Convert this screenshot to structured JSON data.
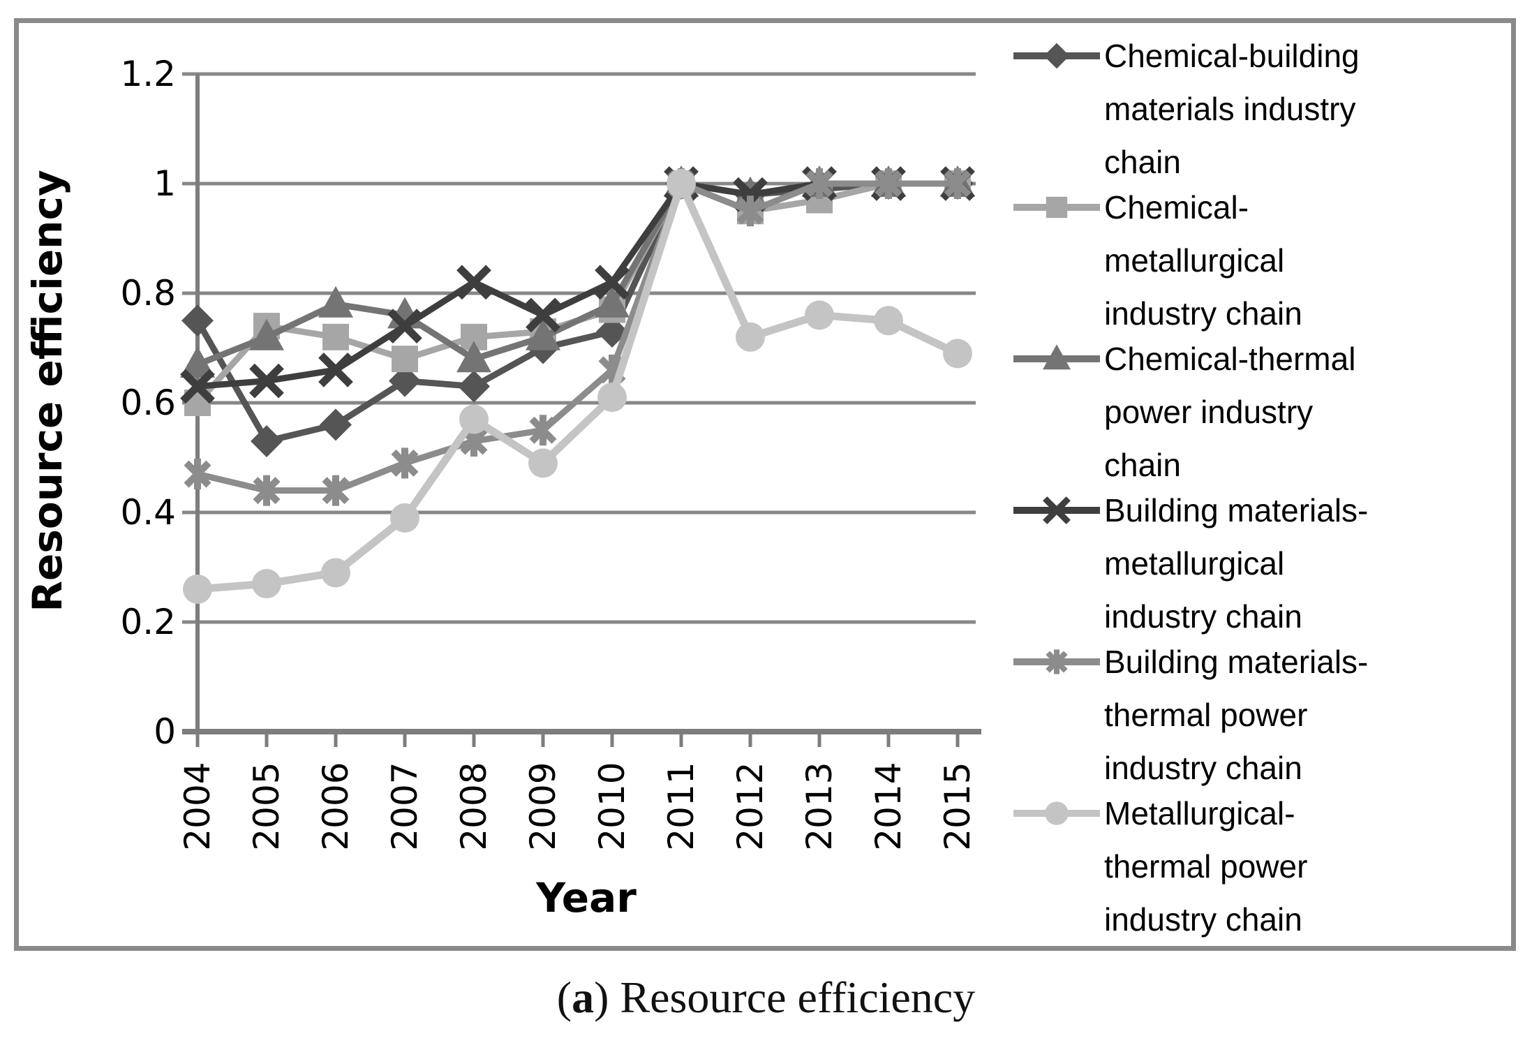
{
  "chart_data": {
    "type": "line",
    "title": "",
    "xlabel": "Year",
    "ylabel": "Resource efficiency",
    "x": [
      2004,
      2005,
      2006,
      2007,
      2008,
      2009,
      2010,
      2011,
      2012,
      2013,
      2014,
      2015
    ],
    "ylim": [
      0,
      1.2
    ],
    "yticks": [
      0,
      0.2,
      0.4,
      0.6,
      0.8,
      1.0,
      1.2
    ],
    "grid": true,
    "legend_position": "right",
    "series": [
      {
        "name": "Chemical-building materials industry chain",
        "marker": "diamond",
        "color": "#555555",
        "values": [
          0.75,
          0.53,
          0.56,
          0.64,
          0.63,
          0.7,
          0.73,
          1.0,
          0.98,
          0.99,
          1.0,
          1.0
        ]
      },
      {
        "name": "Chemical-metallurgical industry chain",
        "marker": "square",
        "color": "#a6a6a6",
        "values": [
          0.6,
          0.74,
          0.72,
          0.68,
          0.72,
          0.73,
          0.77,
          1.0,
          0.95,
          0.97,
          1.0,
          1.0
        ]
      },
      {
        "name": "Chemical-thermal power industry chain",
        "marker": "triangle",
        "color": "#747474",
        "values": [
          0.67,
          0.72,
          0.78,
          0.76,
          0.68,
          0.72,
          0.78,
          1.0,
          0.98,
          1.0,
          1.0,
          1.0
        ]
      },
      {
        "name": "Building materials-metallurgical industry chain",
        "marker": "x",
        "color": "#3e3e3e",
        "values": [
          0.63,
          0.64,
          0.66,
          0.74,
          0.82,
          0.76,
          0.82,
          1.0,
          0.98,
          1.0,
          1.0,
          1.0
        ]
      },
      {
        "name": "Building materials-thermal power industry chain",
        "marker": "asterisk",
        "color": "#8c8c8c",
        "values": [
          0.47,
          0.44,
          0.44,
          0.49,
          0.53,
          0.55,
          0.66,
          1.0,
          0.95,
          1.0,
          1.0,
          1.0
        ]
      },
      {
        "name": "Metallurgical-thermal power industry chain",
        "marker": "circle",
        "color": "#c4c4c4",
        "values": [
          0.26,
          0.27,
          0.29,
          0.39,
          0.57,
          0.49,
          0.61,
          1.0,
          0.72,
          0.76,
          0.75,
          0.69
        ]
      }
    ]
  },
  "axes": {
    "y_title": "Resource efficiency",
    "x_title": "Year",
    "y_tick_labels": [
      "1.2",
      "1",
      "0.8",
      "0.6",
      "0.4",
      "0.2",
      "0"
    ],
    "x_tick_labels": [
      "2004",
      "2005",
      "2006",
      "2007",
      "2008",
      "2009",
      "2010",
      "2011",
      "2012",
      "2013",
      "2014",
      "2015"
    ]
  },
  "legend": {
    "entries": [
      {
        "marker": "diamond",
        "label": "Chemical-building\nmaterials industry\nchain"
      },
      {
        "marker": "square",
        "label": "Chemical-\nmetallurgical\nindustry chain"
      },
      {
        "marker": "triangle",
        "label": "Chemical-thermal\npower industry\nchain"
      },
      {
        "marker": "x",
        "label": "Building materials-\nmetallurgical\nindustry chain"
      },
      {
        "marker": "asterisk",
        "label": "Building materials-\nthermal power\nindustry chain"
      },
      {
        "marker": "circle",
        "label": "Metallurgical-\nthermal power\nindustry chain"
      }
    ]
  },
  "caption": {
    "open": "(",
    "letter": "a",
    "rest": ") Resource efficiency"
  },
  "style": {
    "grid_color": "#878787",
    "axis_color": "#7d7d7d",
    "frame_color": "#8a8a8a"
  }
}
